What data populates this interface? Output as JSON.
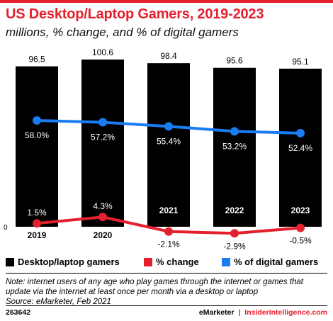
{
  "header": {
    "title": "US Desktop/Laptop Gamers, 2019-2023",
    "subtitle": "millions, % change, and % of digital gamers"
  },
  "colors": {
    "accent": "#e5202e",
    "bar": "#000000",
    "change_line": "#e5202e",
    "digital_line": "#1a7cf2"
  },
  "chart_data": {
    "type": "bar",
    "categories": [
      "2019",
      "2020",
      "2021",
      "2022",
      "2023"
    ],
    "series": [
      {
        "name": "Desktop/laptop gamers",
        "type": "bar",
        "values": [
          96.5,
          100.6,
          98.4,
          95.6,
          95.1
        ],
        "labels": [
          "96.5",
          "100.6",
          "98.4",
          "95.6",
          "95.1"
        ]
      },
      {
        "name": "% change",
        "type": "line",
        "values": [
          1.5,
          4.3,
          -2.1,
          -2.9,
          -0.5
        ],
        "labels": [
          "1.5%",
          "4.3%",
          "-2.1%",
          "-2.9%",
          "-0.5%"
        ]
      },
      {
        "name": "% of digital gamers",
        "type": "line",
        "values": [
          58.0,
          57.2,
          55.4,
          53.2,
          52.4
        ],
        "labels": [
          "58.0%",
          "57.2%",
          "55.4%",
          "53.2%",
          "52.4%"
        ]
      }
    ],
    "zero_label": "0",
    "grid": false,
    "legend_position": "bottom"
  },
  "legend": [
    {
      "label": "Desktop/laptop gamers",
      "color": "#000000"
    },
    {
      "label": "% change",
      "color": "#e5202e"
    },
    {
      "label": "% of digital gamers",
      "color": "#1a7cf2"
    }
  ],
  "note": {
    "text": "Note: internet users of any age who play games through the internet or games that update via the internet at least once per month via a desktop or laptop",
    "source": "Source: eMarketer, Feb 2021"
  },
  "footer": {
    "id": "263642",
    "brand1": "eMarketer",
    "separator": "|",
    "brand2": "InsiderIntelligence.com"
  }
}
